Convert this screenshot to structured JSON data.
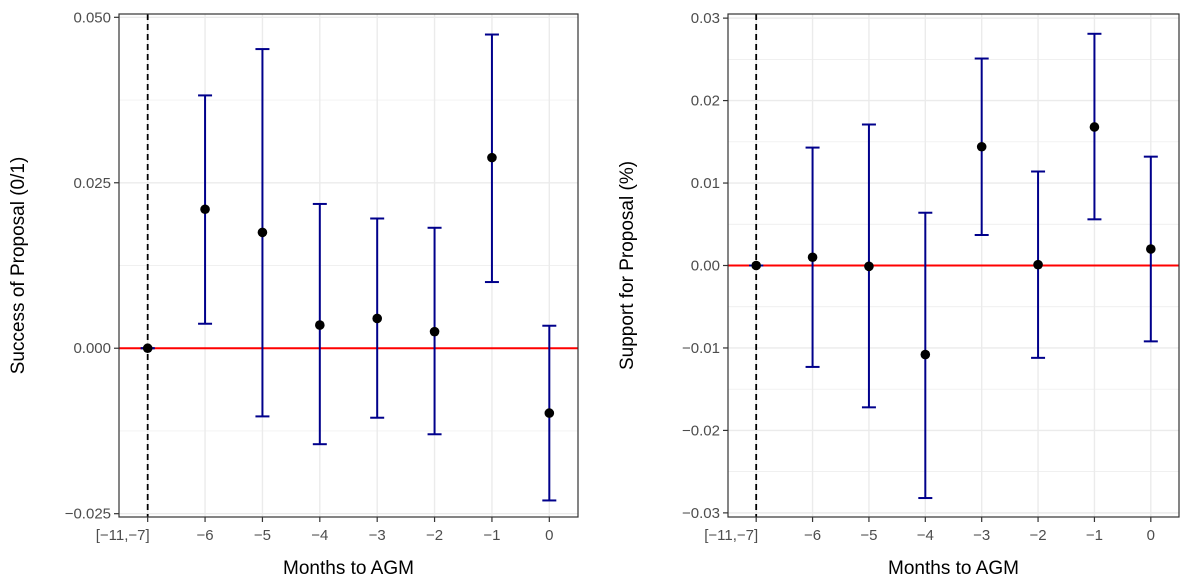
{
  "chart_data": [
    {
      "type": "scatter",
      "error_bars": true,
      "xlabel": "Months to AGM",
      "ylabel": "Success of Proposal (0/1)",
      "categories": [
        "[−11,−7]",
        "−6",
        "−5",
        "−4",
        "−3",
        "−2",
        "−1",
        "0"
      ],
      "values": [
        0.0,
        0.021,
        0.0175,
        0.0035,
        0.0045,
        0.0025,
        0.0288,
        -0.0098
      ],
      "lower": [
        0.0,
        0.0037,
        -0.0103,
        -0.0145,
        -0.0105,
        -0.013,
        0.01,
        -0.023
      ],
      "upper": [
        0.0,
        0.0382,
        0.0452,
        0.0218,
        0.0196,
        0.0182,
        0.0474,
        0.0034
      ],
      "ylim": [
        -0.0255,
        0.0505
      ],
      "yticks": [
        -0.025,
        0.0,
        0.025,
        0.05
      ],
      "ytick_labels": [
        "−0.025",
        "0.000",
        "0.025",
        "0.050"
      ],
      "hline": 0,
      "vline_category_index": 0,
      "grid": true,
      "colors": {
        "point": "#000000",
        "error_bar": "#00008b",
        "hline": "#ff0000",
        "vline": "#000000",
        "grid": "#ebebeb"
      }
    },
    {
      "type": "scatter",
      "error_bars": true,
      "xlabel": "Months to AGM",
      "ylabel": "Support for Proposal (%)",
      "categories": [
        "[−11,−7]",
        "−6",
        "−5",
        "−4",
        "−3",
        "−2",
        "−1",
        "0"
      ],
      "values": [
        0.0,
        0.001,
        -0.0001,
        -0.0108,
        0.0144,
        0.0001,
        0.0168,
        0.002
      ],
      "lower": [
        0.0,
        -0.0123,
        -0.0172,
        -0.0282,
        0.0037,
        -0.0112,
        0.0056,
        -0.0092
      ],
      "upper": [
        0.0,
        0.0143,
        0.0171,
        0.0064,
        0.0251,
        0.0114,
        0.0281,
        0.0132
      ],
      "ylim": [
        -0.0305,
        0.0305
      ],
      "yticks": [
        -0.03,
        -0.02,
        -0.01,
        0.0,
        0.01,
        0.02,
        0.03
      ],
      "ytick_labels": [
        "−0.03",
        "−0.02",
        "−0.01",
        "0.00",
        "0.01",
        "0.02",
        "0.03"
      ],
      "hline": 0,
      "vline_category_index": 0,
      "grid": true,
      "colors": {
        "point": "#000000",
        "error_bar": "#00008b",
        "hline": "#ff0000",
        "vline": "#000000",
        "grid": "#ebebeb"
      }
    }
  ]
}
